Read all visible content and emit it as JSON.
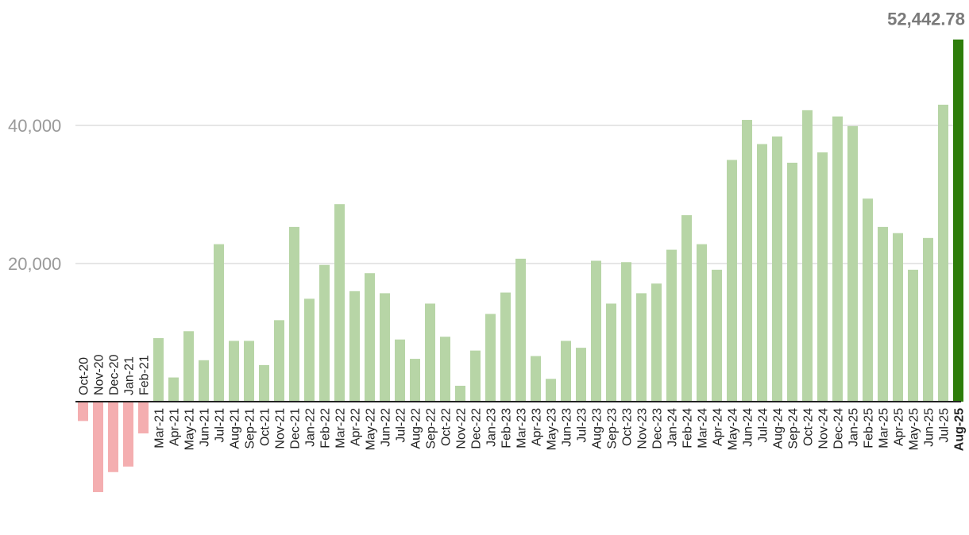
{
  "colors": {
    "positive": "#b7d5a6",
    "negative": "#f4aeb0",
    "highlight": "#2e7d0b",
    "gridline": "#dddddd",
    "axis": "#222222"
  },
  "chart_data": {
    "type": "bar",
    "title": "",
    "xlabel": "",
    "ylabel": "",
    "ylim": [
      -15000,
      55000
    ],
    "yticks": [
      20000,
      40000
    ],
    "ytick_labels": [
      "20,000",
      "40,000"
    ],
    "grid": true,
    "legend": "none",
    "categories": [
      "Oct-20",
      "Nov-20",
      "Dec-20",
      "Jan-21",
      "Feb-21",
      "Mar-21",
      "Apr-21",
      "May-21",
      "Jun-21",
      "Jul-21",
      "Aug-21",
      "Sep-21",
      "Oct-21",
      "Nov-21",
      "Dec-21",
      "Jan-22",
      "Feb-22",
      "Mar-22",
      "Apr-22",
      "May-22",
      "Jun-22",
      "Jul-22",
      "Aug-22",
      "Sep-22",
      "Oct-22",
      "Nov-22",
      "Dec-22",
      "Jan-23",
      "Feb-23",
      "Mar-23",
      "Apr-23",
      "May-23",
      "Jun-23",
      "Jul-23",
      "Aug-23",
      "Sep-23",
      "Oct-23",
      "Nov-23",
      "Dec-23",
      "Jan-24",
      "Feb-24",
      "Mar-24",
      "Apr-24",
      "May-24",
      "Jun-24",
      "Jul-24",
      "Aug-24",
      "Sep-24",
      "Oct-24",
      "Nov-24",
      "Dec-24",
      "Jan-25",
      "Feb-25",
      "Mar-25",
      "Apr-25",
      "May-25",
      "Jun-25",
      "Jul-25",
      "Aug-25"
    ],
    "values": [
      -2800,
      -13100,
      -10200,
      -9400,
      -4600,
      9200,
      3500,
      10200,
      6000,
      22800,
      8800,
      8800,
      5300,
      11800,
      25300,
      14900,
      19800,
      28600,
      16000,
      18600,
      15700,
      9000,
      6200,
      14200,
      9400,
      2300,
      7400,
      12700,
      15800,
      20700,
      6600,
      3300,
      8800,
      7800,
      20400,
      14200,
      20200,
      15700,
      17100,
      22000,
      27000,
      22800,
      19100,
      35000,
      40800,
      37300,
      38400,
      34600,
      42200,
      36100,
      41300,
      39900,
      29400,
      25300,
      24400,
      19100,
      23700,
      43000,
      52442.78
    ],
    "highlight_index": 58,
    "data_labels": [
      {
        "index": 58,
        "text": "52,442.78"
      }
    ]
  }
}
